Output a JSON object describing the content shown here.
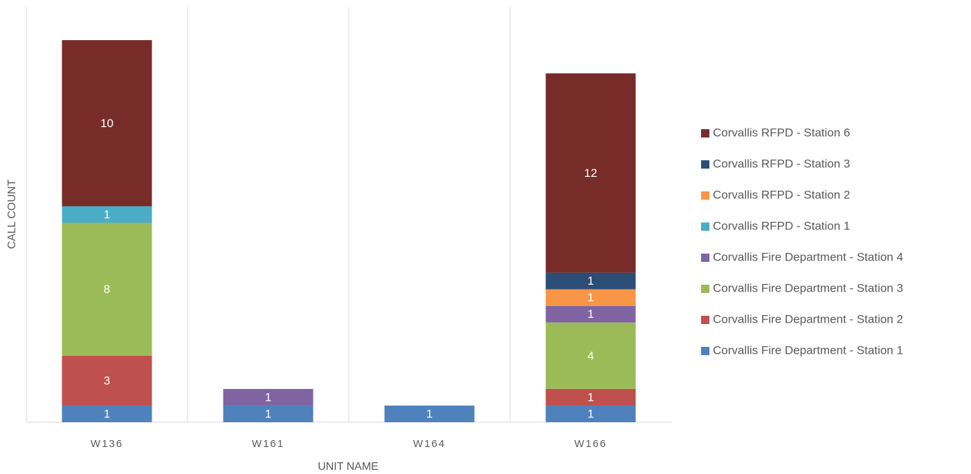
{
  "chart_data": {
    "type": "stacked_bar",
    "x_label": "UNIT NAME",
    "y_label": "CALL COUNT",
    "categories": [
      "W136",
      "W161",
      "W164",
      "W166"
    ],
    "series": [
      {
        "name": "Corvallis Fire Department - Station 1",
        "color": "#4f81bd",
        "values": [
          1,
          1,
          1,
          1
        ]
      },
      {
        "name": "Corvallis Fire Department - Station 2",
        "color": "#c0504d",
        "values": [
          3,
          null,
          null,
          1
        ]
      },
      {
        "name": "Corvallis Fire Department - Station 3",
        "color": "#9bbb59",
        "values": [
          8,
          null,
          null,
          4
        ]
      },
      {
        "name": "Corvallis Fire Department - Station 4",
        "color": "#8064a2",
        "values": [
          null,
          1,
          null,
          1
        ]
      },
      {
        "name": "Corvallis RFPD - Station 1",
        "color": "#4bacc6",
        "values": [
          1,
          null,
          null,
          null
        ]
      },
      {
        "name": "Corvallis RFPD - Station 2",
        "color": "#f79646",
        "values": [
          null,
          null,
          null,
          1
        ]
      },
      {
        "name": "Corvallis RFPD - Station 3",
        "color": "#2c4d75",
        "values": [
          null,
          null,
          null,
          1
        ]
      },
      {
        "name": "Corvallis RFPD - Station 6",
        "color": "#772c2a",
        "values": [
          10,
          null,
          null,
          12
        ]
      }
    ],
    "ylim": [
      0,
      25
    ],
    "legend": "right"
  }
}
